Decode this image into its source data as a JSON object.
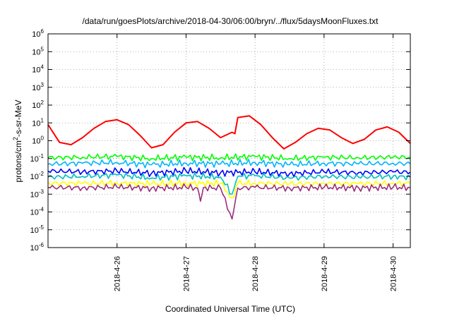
{
  "chart_data": {
    "type": "line",
    "title": "/data/run/goesPlots/archive/2018-04-30/06:00/bryn/../flux/5daysMoonFluxes.txt",
    "xlabel": "Coordinated Universal Time (UTC)",
    "ylabel_main": "protons/cm",
    "ylabel_sup": "2",
    "ylabel_tail": "-s-sr-MeV",
    "y_scale": "log",
    "ylim": [
      1e-06,
      1000000.0
    ],
    "y_ticks": [
      {
        "base": "10",
        "exp": "-6"
      },
      {
        "base": "10",
        "exp": "-5"
      },
      {
        "base": "10",
        "exp": "-4"
      },
      {
        "base": "10",
        "exp": "-3"
      },
      {
        "base": "10",
        "exp": "-2"
      },
      {
        "base": "10",
        "exp": "-1"
      },
      {
        "base": "10",
        "exp": "0"
      },
      {
        "base": "10",
        "exp": "1"
      },
      {
        "base": "10",
        "exp": "2"
      },
      {
        "base": "10",
        "exp": "3"
      },
      {
        "base": "10",
        "exp": "4"
      },
      {
        "base": "10",
        "exp": "5"
      },
      {
        "base": "10",
        "exp": "6"
      }
    ],
    "x_range": [
      "2018-04-25 00:00",
      "2018-04-30 06:00"
    ],
    "x_ticks": [
      "2018-4-26",
      "2018-4-27",
      "2018-4-28",
      "2018-4-29",
      "2018-4-30"
    ],
    "grid": true,
    "legend": "none",
    "series": [
      {
        "color": "#ff0000",
        "x": [
          "2018-04-25 00:00",
          "2018-04-25 04:00",
          "2018-04-25 08:00",
          "2018-04-25 12:00",
          "2018-04-25 16:00",
          "2018-04-25 20:00",
          "2018-04-26 00:00",
          "2018-04-26 04:00",
          "2018-04-26 08:00",
          "2018-04-26 12:00",
          "2018-04-26 16:00",
          "2018-04-26 20:00",
          "2018-04-27 00:00",
          "2018-04-27 04:00",
          "2018-04-27 08:00",
          "2018-04-27 12:00",
          "2018-04-27 16:00",
          "2018-04-27 17:00",
          "2018-04-27 18:00",
          "2018-04-27 22:00",
          "2018-04-28 02:00",
          "2018-04-28 06:00",
          "2018-04-28 10:00",
          "2018-04-28 14:00",
          "2018-04-28 18:00",
          "2018-04-28 22:00",
          "2018-04-29 02:00",
          "2018-04-29 06:00",
          "2018-04-29 10:00",
          "2018-04-29 14:00",
          "2018-04-29 18:00",
          "2018-04-29 22:00",
          "2018-04-30 02:00",
          "2018-04-30 06:00"
        ],
        "y": [
          8,
          0.8,
          0.6,
          1.5,
          5,
          12,
          15,
          8,
          2,
          0.4,
          0.6,
          3,
          10,
          12,
          5,
          1.5,
          3,
          2.5,
          20,
          25,
          8,
          1.5,
          0.35,
          0.8,
          2.5,
          5,
          4,
          1.5,
          0.7,
          1.2,
          4,
          6,
          3,
          0.7
        ]
      },
      {
        "color": "#00ff00",
        "x": [
          "2018-04-25 00:00",
          "2018-04-25 12:00",
          "2018-04-26 00:00",
          "2018-04-26 12:00",
          "2018-04-27 00:00",
          "2018-04-27 12:00",
          "2018-04-28 00:00",
          "2018-04-28 12:00",
          "2018-04-29 00:00",
          "2018-04-29 12:00",
          "2018-04-30 00:00",
          "2018-04-30 06:00"
        ],
        "y": [
          0.11,
          0.12,
          0.13,
          0.1,
          0.12,
          0.11,
          0.13,
          0.1,
          0.12,
          0.11,
          0.12,
          0.12
        ]
      },
      {
        "color": "#00b4ff",
        "x": [
          "2018-04-25 00:00",
          "2018-04-25 12:00",
          "2018-04-26 00:00",
          "2018-04-26 12:00",
          "2018-04-27 00:00",
          "2018-04-27 12:00",
          "2018-04-28 00:00",
          "2018-04-28 12:00",
          "2018-04-29 00:00",
          "2018-04-29 12:00",
          "2018-04-30 00:00",
          "2018-04-30 06:00"
        ],
        "y": [
          0.05,
          0.055,
          0.06,
          0.045,
          0.055,
          0.05,
          0.06,
          0.045,
          0.055,
          0.05,
          0.055,
          0.05
        ]
      },
      {
        "color": "#0000ff",
        "x": [
          "2018-04-25 00:00",
          "2018-04-25 12:00",
          "2018-04-26 00:00",
          "2018-04-26 12:00",
          "2018-04-27 00:00",
          "2018-04-27 12:00",
          "2018-04-28 00:00",
          "2018-04-28 12:00",
          "2018-04-29 00:00",
          "2018-04-29 12:00",
          "2018-04-30 00:00",
          "2018-04-30 06:00"
        ],
        "y": [
          0.02,
          0.018,
          0.02,
          0.015,
          0.02,
          0.016,
          0.018,
          0.014,
          0.018,
          0.016,
          0.018,
          0.017
        ]
      },
      {
        "color": "#00c0c0",
        "x": [
          "2018-04-25 00:00",
          "2018-04-25 12:00",
          "2018-04-26 00:00",
          "2018-04-26 12:00",
          "2018-04-27 00:00",
          "2018-04-27 12:00",
          "2018-04-27 16:00",
          "2018-04-27 18:00",
          "2018-04-28 00:00",
          "2018-04-28 12:00",
          "2018-04-29 00:00",
          "2018-04-29 12:00",
          "2018-04-30 00:00",
          "2018-04-30 06:00"
        ],
        "y": [
          0.009,
          0.01,
          0.012,
          0.008,
          0.011,
          0.009,
          0.001,
          0.01,
          0.011,
          0.008,
          0.01,
          0.009,
          0.01,
          0.009
        ]
      },
      {
        "color": "#ffff00",
        "x": [
          "2018-04-25 00:00",
          "2018-04-25 12:00",
          "2018-04-26 00:00",
          "2018-04-26 12:00",
          "2018-04-27 00:00",
          "2018-04-27 12:00",
          "2018-04-27 16:00",
          "2018-04-27 18:00",
          "2018-04-28 00:00",
          "2018-04-28 12:00",
          "2018-04-29 00:00",
          "2018-04-29 12:00",
          "2018-04-30 00:00",
          "2018-04-30 06:00"
        ],
        "y": [
          0.0042,
          0.004,
          0.0042,
          0.0038,
          0.0041,
          0.004,
          0.0006,
          0.004,
          0.0041,
          0.0038,
          0.004,
          0.0039,
          0.004,
          0.0039
        ]
      },
      {
        "color": "#9b2d7a",
        "x": [
          "2018-04-25 00:00",
          "2018-04-25 12:00",
          "2018-04-26 00:00",
          "2018-04-26 12:00",
          "2018-04-27 00:00",
          "2018-04-27 04:00",
          "2018-04-27 05:00",
          "2018-04-27 06:00",
          "2018-04-27 12:00",
          "2018-04-27 16:00",
          "2018-04-27 17:00",
          "2018-04-27 18:00",
          "2018-04-28 00:00",
          "2018-04-28 12:00",
          "2018-04-29 00:00",
          "2018-04-29 12:00",
          "2018-04-30 00:00",
          "2018-04-30 06:00"
        ],
        "y": [
          0.0024,
          0.0023,
          0.0025,
          0.0022,
          0.0024,
          0.0022,
          0.0004,
          0.0023,
          0.0022,
          4e-05,
          0.0003,
          0.0022,
          0.0024,
          0.0022,
          0.0024,
          0.0023,
          0.0024,
          0.0023
        ]
      }
    ]
  }
}
